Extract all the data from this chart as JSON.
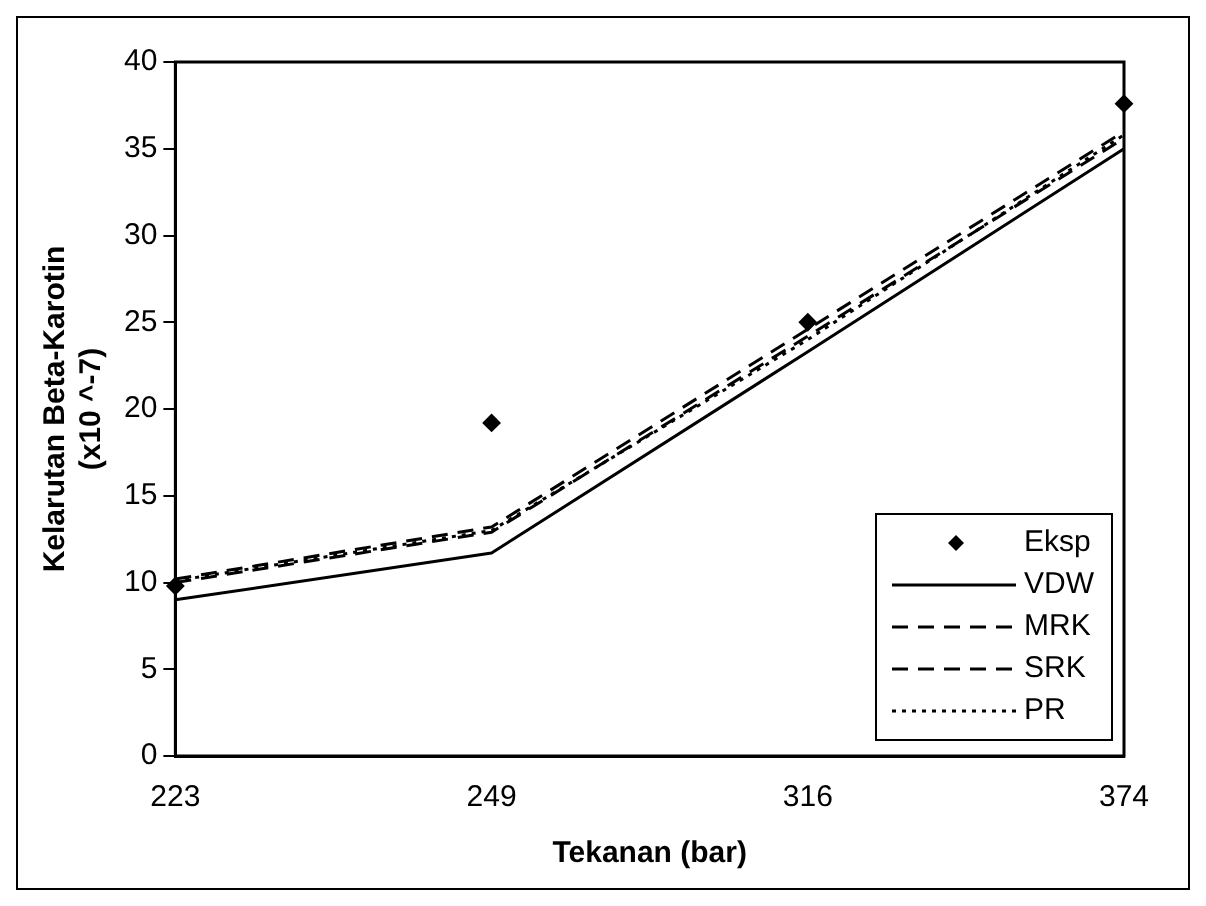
{
  "chart_data": {
    "type": "line",
    "xlabel": "Tekanan (bar)",
    "ylabel": "Kelarutan Beta-Karotin\n(x10 ^-7)",
    "categories": [
      "223",
      "249",
      "316",
      "374"
    ],
    "ylim": [
      0,
      40
    ],
    "yticks": [
      0,
      5,
      10,
      15,
      20,
      25,
      30,
      35,
      40
    ],
    "grid": false,
    "legend": "bottom right",
    "series": [
      {
        "name": "Eksp",
        "type": "scatter",
        "marker": "diamond",
        "color": "#000000",
        "values": [
          9.8,
          19.2,
          25.0,
          37.6
        ]
      },
      {
        "name": "VDW",
        "type": "line",
        "line_style": "solid",
        "color": "#000000",
        "values": [
          9.0,
          11.7,
          23.3,
          35.0
        ]
      },
      {
        "name": "MRK",
        "type": "line",
        "line_style": "dashed",
        "color": "#000000",
        "values": [
          10.2,
          13.2,
          24.6,
          36.0
        ]
      },
      {
        "name": "SRK",
        "type": "line",
        "line_style": "dashed",
        "color": "#000000",
        "values": [
          10.0,
          12.9,
          24.2,
          35.6
        ]
      },
      {
        "name": "PR",
        "type": "line",
        "line_style": "dotted",
        "color": "#000000",
        "values": [
          10.1,
          13.0,
          24.0,
          35.8
        ]
      }
    ]
  }
}
